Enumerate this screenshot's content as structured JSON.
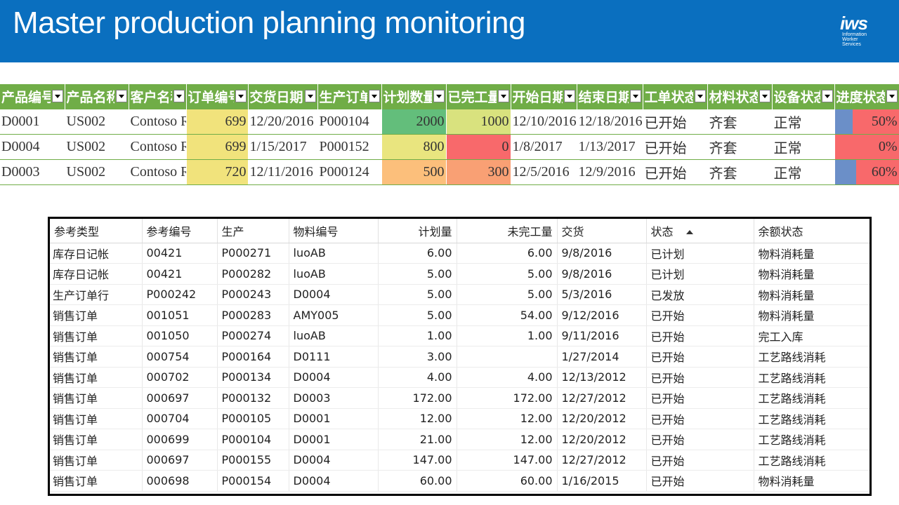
{
  "slide": {
    "title": "Master production planning monitoring",
    "logo": {
      "mark_prefix": "i",
      "mark_suffix": "ws",
      "lines": [
        "Information",
        "Worker",
        "Services"
      ]
    }
  },
  "colors": {
    "banner": "#0a6fbf",
    "header_green": "#70ad47",
    "yellow": "#f1e37c",
    "green": "#63be7b",
    "light_yellow": "#d9e27e",
    "red": "#f8696b",
    "orange": "#fcbf7b",
    "salmon": "#f9a074",
    "progress_bar": "#6b8fc8"
  },
  "excel": {
    "headers": [
      "产品编号",
      "产品名称",
      "客户名称",
      "订单编号",
      "交货日期",
      "生产订单",
      "计划数量",
      "已完工量",
      "开始日期",
      "结束日期",
      "工单状态",
      "材料状态",
      "设备状态",
      "进度状态"
    ],
    "rows": [
      {
        "product_no": "D0001",
        "product_name": "US002",
        "customer": "Contoso Retail",
        "order_no": "699",
        "delivery_date": "12/20/2016",
        "prod_order": "P000104",
        "planned_qty": "2000",
        "completed_qty": "1000",
        "start_date": "12/10/2016",
        "end_date": "12/18/2016",
        "order_status": "已开始",
        "material_status": "齐套",
        "equipment_status": "正常",
        "progress": "50%",
        "progress_value": 0.5,
        "planned_color": "#63be7b",
        "completed_color": "#d9e27e",
        "progress_bg": "#f8696b"
      },
      {
        "product_no": "D0004",
        "product_name": "US002",
        "customer": "Contoso Retail",
        "order_no": "699",
        "delivery_date": "1/15/2017",
        "prod_order": "P000152",
        "planned_qty": "800",
        "completed_qty": "0",
        "start_date": "1/8/2017",
        "end_date": "1/13/2017",
        "order_status": "已开始",
        "material_status": "齐套",
        "equipment_status": "正常",
        "progress": "0%",
        "progress_value": 0,
        "planned_color": "#e9e57f",
        "completed_color": "#f8696b",
        "progress_bg": "#f8696b"
      },
      {
        "product_no": "D0003",
        "product_name": "US002",
        "customer": "Contoso Retail",
        "order_no": "720",
        "delivery_date": "12/11/2016",
        "prod_order": "P000124",
        "planned_qty": "500",
        "completed_qty": "300",
        "start_date": "12/5/2016",
        "end_date": "12/9/2016",
        "order_status": "已开始",
        "material_status": "齐套",
        "equipment_status": "正常",
        "progress": "60%",
        "progress_value": 0.6,
        "planned_color": "#fcbf7b",
        "completed_color": "#f9a074",
        "progress_bg": "#f8696b"
      }
    ]
  },
  "grid": {
    "headers": [
      "参考类型",
      "参考编号",
      "生产",
      "物料编号",
      "计划量",
      "未完工量",
      "交货",
      "状态",
      "余额状态"
    ],
    "sorted_column": "状态",
    "rows": [
      [
        "库存日记帐",
        "00421",
        "P000271",
        "luoAB",
        "6.00",
        "6.00",
        "9/8/2016",
        "已计划",
        "物料消耗量"
      ],
      [
        "库存日记帐",
        "00421",
        "P000282",
        "luoAB",
        "5.00",
        "5.00",
        "9/8/2016",
        "已计划",
        "物料消耗量"
      ],
      [
        "生产订单行",
        "P000242",
        "P000243",
        "D0004",
        "5.00",
        "5.00",
        "5/3/2016",
        "已发放",
        "物料消耗量"
      ],
      [
        "销售订单",
        "001051",
        "P000283",
        "AMY005",
        "5.00",
        "54.00",
        "9/12/2016",
        "已开始",
        "物料消耗量"
      ],
      [
        "销售订单",
        "001050",
        "P000274",
        "luoAB",
        "1.00",
        "1.00",
        "9/11/2016",
        "已开始",
        "完工入库"
      ],
      [
        "销售订单",
        "000754",
        "P000164",
        "D0111",
        "3.00",
        "",
        "1/27/2014",
        "已开始",
        "工艺路线消耗"
      ],
      [
        "销售订单",
        "000702",
        "P000134",
        "D0004",
        "4.00",
        "4.00",
        "12/13/2012",
        "已开始",
        "工艺路线消耗"
      ],
      [
        "销售订单",
        "000697",
        "P000132",
        "D0003",
        "172.00",
        "172.00",
        "12/27/2012",
        "已开始",
        "工艺路线消耗"
      ],
      [
        "销售订单",
        "000704",
        "P000105",
        "D0001",
        "12.00",
        "12.00",
        "12/20/2012",
        "已开始",
        "工艺路线消耗"
      ],
      [
        "销售订单",
        "000699",
        "P000104",
        "D0001",
        "21.00",
        "12.00",
        "12/20/2012",
        "已开始",
        "工艺路线消耗"
      ],
      [
        "销售订单",
        "000697",
        "P000155",
        "D0004",
        "147.00",
        "147.00",
        "12/27/2012",
        "已开始",
        "工艺路线消耗"
      ],
      [
        "销售订单",
        "000698",
        "P000154",
        "D0004",
        "60.00",
        "60.00",
        "1/16/2015",
        "已开始",
        "物料消耗量"
      ]
    ]
  }
}
